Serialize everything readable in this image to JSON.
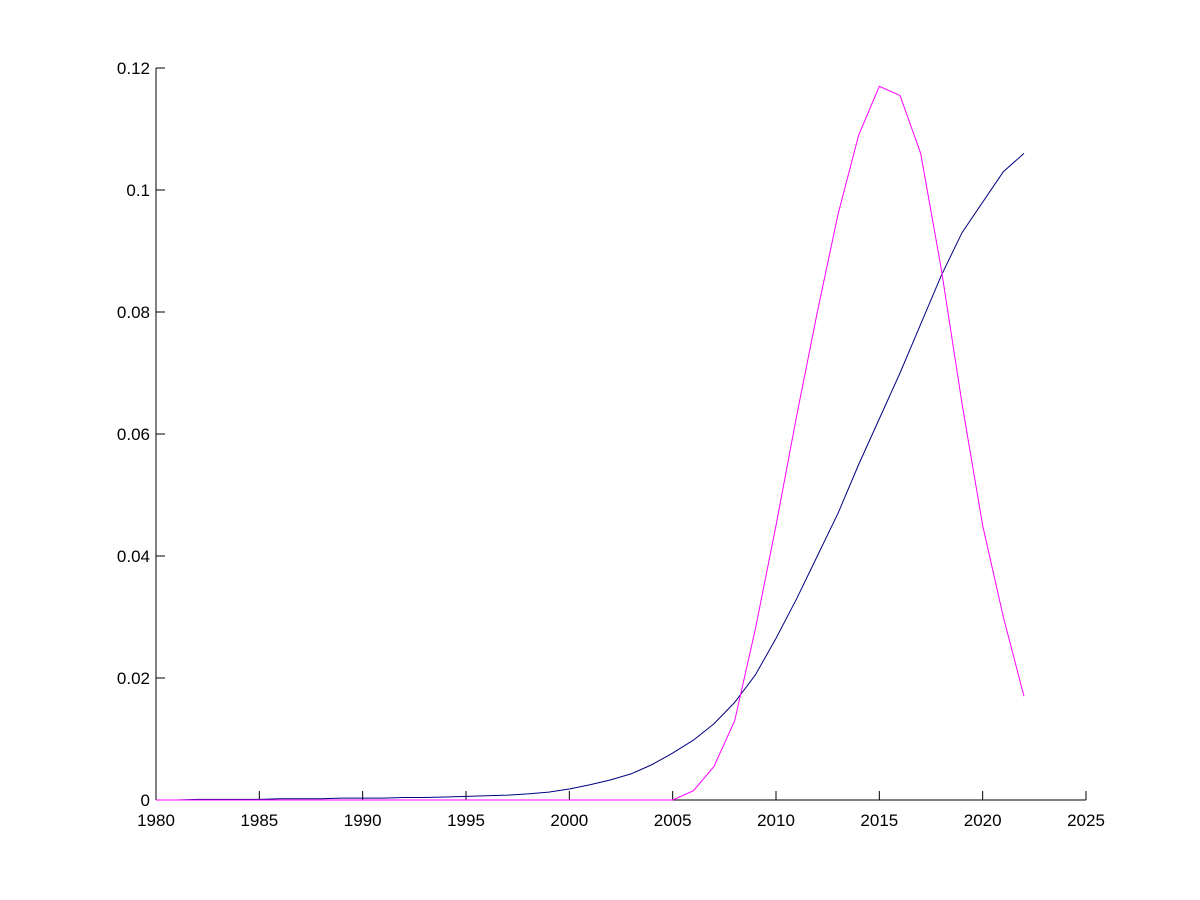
{
  "chart_data": {
    "type": "line",
    "x": [
      1980,
      1981,
      1982,
      1983,
      1984,
      1985,
      1986,
      1987,
      1988,
      1989,
      1990,
      1991,
      1992,
      1993,
      1994,
      1995,
      1996,
      1997,
      1998,
      1999,
      2000,
      2001,
      2002,
      2003,
      2004,
      2005,
      2006,
      2007,
      2008,
      2009,
      2010,
      2011,
      2012,
      2013,
      2014,
      2015,
      2016,
      2017,
      2018,
      2019,
      2020,
      2021,
      2022
    ],
    "series": [
      {
        "color": "#000080",
        "values": [
          0,
          0,
          0.0001,
          0.0001,
          0.0001,
          0.0001,
          0.0002,
          0.0002,
          0.0002,
          0.0003,
          0.0003,
          0.0003,
          0.0004,
          0.0004,
          0.0005,
          0.0006,
          0.0007,
          0.0008,
          0.001,
          0.0013,
          0.0018,
          0.0025,
          0.0033,
          0.0043,
          0.0058,
          0.0077,
          0.0098,
          0.0125,
          0.016,
          0.0205,
          0.0265,
          0.033,
          0.04,
          0.047,
          0.055,
          0.0625,
          0.07,
          0.078,
          0.086,
          0.093,
          0.098,
          0.103,
          0.106
        ]
      },
      {
        "color": "#ff00ff",
        "values": [
          0,
          0,
          0,
          0,
          0,
          0,
          0,
          0,
          0,
          0,
          0,
          0,
          0,
          0,
          0,
          0,
          0,
          0,
          0,
          0,
          0,
          0,
          0,
          0,
          0,
          0,
          0.0015,
          0.0055,
          0.013,
          0.028,
          0.045,
          0.063,
          0.08,
          0.096,
          0.109,
          0.117,
          0.1155,
          0.106,
          0.087,
          0.065,
          0.045,
          0.03,
          0.017
        ]
      }
    ],
    "xlim": [
      1980,
      2025
    ],
    "xticks": [
      1980,
      1985,
      1990,
      1995,
      2000,
      2005,
      2010,
      2015,
      2020,
      2025
    ],
    "ylim": [
      0,
      0.12
    ],
    "yticks": [
      0,
      0.02,
      0.04,
      0.06,
      0.08,
      0.1,
      0.12
    ]
  }
}
